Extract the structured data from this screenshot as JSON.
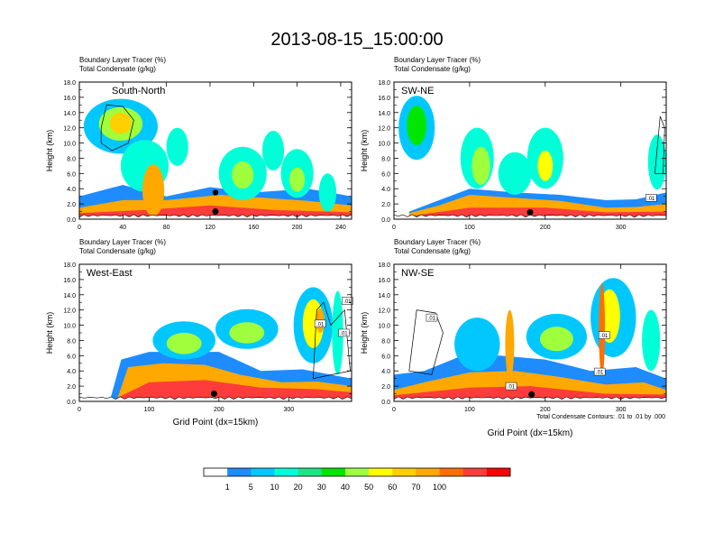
{
  "figure": {
    "title": "2013-08-15_15:00:00",
    "condensate_note": "Total Condensate Contours: .01 to .01 by .000",
    "colorbar": {
      "colors": [
        "#ffffff",
        "#1e8cff",
        "#00c8ff",
        "#00ffd8",
        "#19e687",
        "#00e600",
        "#a0ff3c",
        "#ffff00",
        "#ffd000",
        "#ffa800",
        "#ff6e00",
        "#ff3c3c",
        "#ff0000"
      ],
      "labels": [
        "1",
        "5",
        "10",
        "20",
        "30",
        "40",
        "50",
        "60",
        "70",
        "100"
      ]
    }
  },
  "chart_data": [
    {
      "type": "heatmap",
      "name": "South-North",
      "label": "South-North",
      "title_line1": "Boundary Layer Tracer",
      "title_unit1": "(%)",
      "title_line2": "Total Condensate",
      "title_unit2": "(g/kg)",
      "ylabel": "Height (km)",
      "xlabel": "",
      "xlim": [
        0,
        250
      ],
      "ylim": [
        0,
        18
      ],
      "xticks": [
        0,
        40,
        80,
        120,
        160,
        200,
        240
      ],
      "yticks": [
        "0.0",
        "2.0",
        "4.0",
        "6.0",
        "8.0",
        "10.0",
        "12.0",
        "14.0",
        "16.0",
        "18.0"
      ],
      "marker": [
        125,
        1.0
      ],
      "marker2": [
        125,
        3.5
      ],
      "contour_labels": []
    },
    {
      "type": "heatmap",
      "name": "SW-NE",
      "label": "SW-NE",
      "title_line1": "Boundary Layer Tracer",
      "title_unit1": "(%)",
      "title_line2": "Total Condensate",
      "title_unit2": "(g/kg)",
      "ylabel": "Height (km)",
      "xlabel": "",
      "xlim": [
        0,
        360
      ],
      "ylim": [
        0,
        18
      ],
      "xticks": [
        0,
        100,
        200,
        300
      ],
      "yticks": [
        "0.0",
        "2.0",
        "4.0",
        "6.0",
        "8.0",
        "10.0",
        "12.0",
        "14.0",
        "16.0",
        "18.0"
      ],
      "marker": [
        180,
        0.9
      ],
      "marker2": null,
      "contour_labels": [
        {
          "x": 340,
          "y": 2.8,
          "text": ".01"
        }
      ]
    },
    {
      "type": "heatmap",
      "name": "West-East",
      "label": "West-East",
      "title_line1": "Boundary Layer Tracer",
      "title_unit1": "(%)",
      "title_line2": "Total Condensate",
      "title_unit2": "(g/kg)",
      "ylabel": "Height (km)",
      "xlabel": "Grid Point (dx=15km)",
      "xlim": [
        0,
        390
      ],
      "ylim": [
        0,
        18
      ],
      "xticks": [
        0,
        100,
        200,
        300
      ],
      "yticks": [
        "0.0",
        "2.0",
        "4.0",
        "6.0",
        "8.0",
        "10.0",
        "12.0",
        "14.0",
        "16.0",
        "18.0"
      ],
      "marker": [
        193,
        1.0
      ],
      "marker2": null,
      "contour_labels": [
        {
          "x": 345,
          "y": 10.2,
          "text": ".01"
        },
        {
          "x": 379,
          "y": 9.0,
          "text": ".01"
        },
        {
          "x": 384,
          "y": 13.2,
          "text": ".01"
        }
      ]
    },
    {
      "type": "heatmap",
      "name": "NW-SE",
      "label": "NW-SE",
      "title_line1": "Boundary Layer Tracer",
      "title_unit1": "(%)",
      "title_line2": "Total Condensate",
      "title_unit2": "(g/kg)",
      "ylabel": "Height (km)",
      "xlabel": "Grid Point (dx=15km)",
      "xlim": [
        0,
        360
      ],
      "ylim": [
        0,
        18
      ],
      "xticks": [
        0,
        100,
        200,
        300
      ],
      "yticks": [
        "0.0",
        "2.0",
        "4.0",
        "6.0",
        "8.0",
        "10.0",
        "12.0",
        "14.0",
        "16.0",
        "18.0"
      ],
      "marker": [
        182,
        0.9
      ],
      "marker2": null,
      "contour_labels": [
        {
          "x": 50,
          "y": 11.0,
          "text": ".01"
        },
        {
          "x": 278,
          "y": 8.7,
          "text": ".01"
        },
        {
          "x": 272,
          "y": 3.9,
          "text": ".01"
        },
        {
          "x": 155,
          "y": 2.0,
          "text": ".01"
        }
      ]
    }
  ]
}
